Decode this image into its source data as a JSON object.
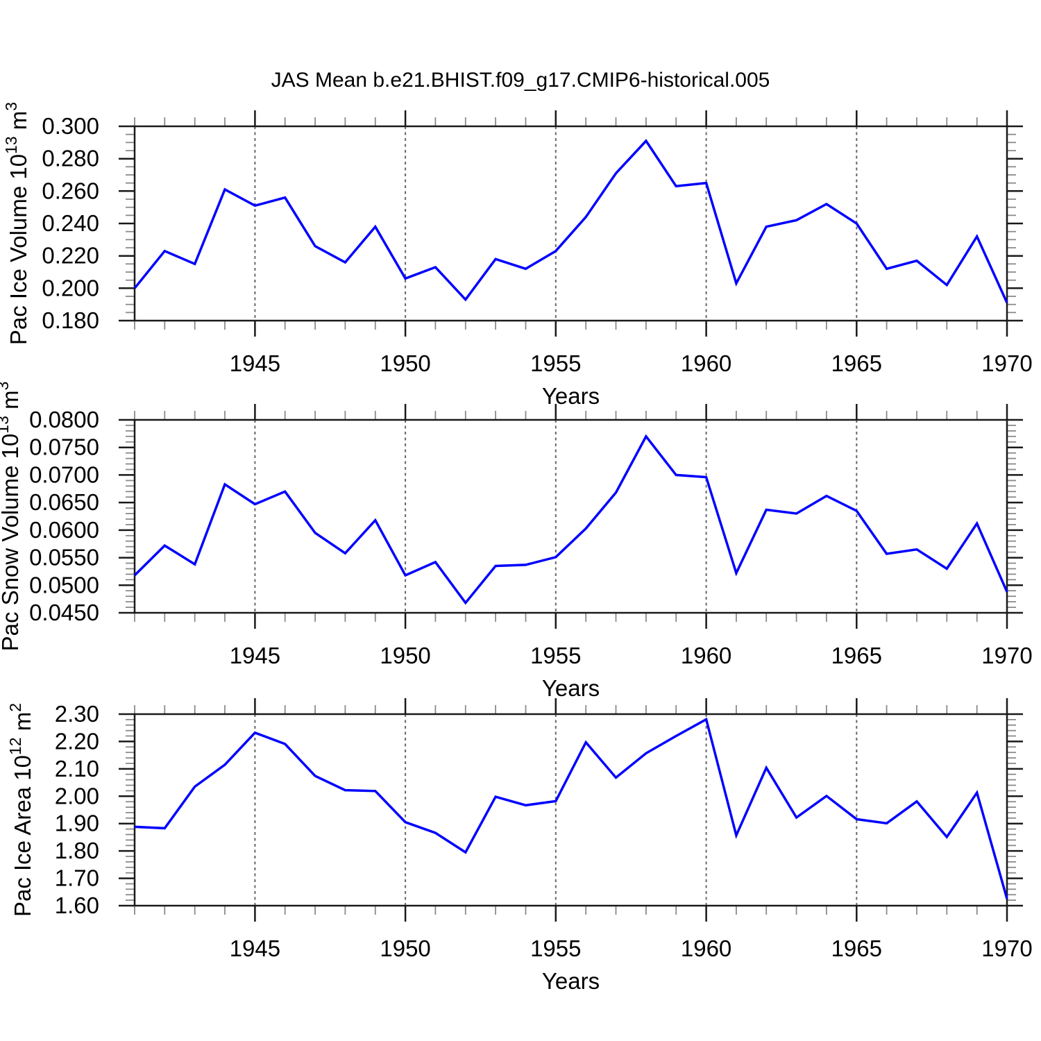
{
  "title": "JAS Mean b.e21.BHIST.f09_g17.CMIP6-historical.005",
  "colors": {
    "line": "#0000ff",
    "frame": "#1a1a1a",
    "major_tick": "#1a1a1a",
    "minor_tick": "#8a8a8a",
    "grid": "#666666",
    "text": "#000000",
    "background": "#ffffff"
  },
  "chart_data": [
    {
      "type": "line",
      "name": "pac-ice-volume",
      "ylabel": {
        "base": "Pac Ice Volume 10",
        "exp": "13",
        "unit": " m",
        "unit_exp": "3"
      },
      "xlabel": "Years",
      "xlim": [
        1941,
        1970
      ],
      "ylim": [
        0.18,
        0.3
      ],
      "ytick_labels": [
        "0.300",
        "0.280",
        "0.260",
        "0.240",
        "0.220",
        "0.200",
        "0.180"
      ],
      "ytick_values": [
        0.3,
        0.28,
        0.26,
        0.24,
        0.22,
        0.2,
        0.18
      ],
      "ytick_minor_step": 0.005,
      "xtick_labels": [
        "1945",
        "1950",
        "1955",
        "1960",
        "1965",
        "1970"
      ],
      "xtick_values": [
        1945,
        1950,
        1955,
        1960,
        1965,
        1970
      ],
      "xtick_minor_step": 1,
      "grid_x": [
        1945,
        1950,
        1955,
        1960,
        1965
      ],
      "grid_style": "vertical-dashed",
      "legend": "none",
      "x": [
        1941,
        1942,
        1943,
        1944,
        1945,
        1946,
        1947,
        1948,
        1949,
        1950,
        1951,
        1952,
        1953,
        1954,
        1955,
        1956,
        1957,
        1958,
        1959,
        1960,
        1961,
        1962,
        1963,
        1964,
        1965,
        1966,
        1967,
        1968,
        1969,
        1970
      ],
      "y": [
        0.2,
        0.223,
        0.215,
        0.261,
        0.251,
        0.256,
        0.226,
        0.216,
        0.238,
        0.206,
        0.213,
        0.193,
        0.218,
        0.212,
        0.223,
        0.244,
        0.271,
        0.291,
        0.263,
        0.265,
        0.203,
        0.238,
        0.242,
        0.252,
        0.24,
        0.212,
        0.217,
        0.202,
        0.232,
        0.191
      ]
    },
    {
      "type": "line",
      "name": "pac-snow-volume",
      "ylabel": {
        "base": "Pac Snow Volume 10",
        "exp": "13",
        "unit": " m",
        "unit_exp": "3"
      },
      "xlabel": "Years",
      "xlim": [
        1941,
        1970
      ],
      "ylim": [
        0.045,
        0.08
      ],
      "ytick_labels": [
        "0.0800",
        "0.0750",
        "0.0700",
        "0.0650",
        "0.0600",
        "0.0550",
        "0.0500",
        "0.0450"
      ],
      "ytick_values": [
        0.08,
        0.075,
        0.07,
        0.065,
        0.06,
        0.055,
        0.05,
        0.045
      ],
      "ytick_minor_step": 0.001,
      "xtick_labels": [
        "1945",
        "1950",
        "1955",
        "1960",
        "1965",
        "1970"
      ],
      "xtick_values": [
        1945,
        1950,
        1955,
        1960,
        1965,
        1970
      ],
      "xtick_minor_step": 1,
      "grid_x": [
        1945,
        1950,
        1955,
        1960,
        1965
      ],
      "grid_style": "vertical-dashed",
      "legend": "none",
      "x": [
        1941,
        1942,
        1943,
        1944,
        1945,
        1946,
        1947,
        1948,
        1949,
        1950,
        1951,
        1952,
        1953,
        1954,
        1955,
        1956,
        1957,
        1958,
        1959,
        1960,
        1961,
        1962,
        1963,
        1964,
        1965,
        1966,
        1967,
        1968,
        1969,
        1970
      ],
      "y": [
        0.0518,
        0.0572,
        0.0538,
        0.0683,
        0.0647,
        0.067,
        0.0595,
        0.0558,
        0.0618,
        0.0518,
        0.0542,
        0.0468,
        0.0535,
        0.0537,
        0.0551,
        0.0603,
        0.0668,
        0.077,
        0.07,
        0.0696,
        0.0522,
        0.0637,
        0.063,
        0.0662,
        0.0635,
        0.0557,
        0.0565,
        0.053,
        0.0612,
        0.0488
      ]
    },
    {
      "type": "line",
      "name": "pac-ice-area",
      "ylabel": {
        "base": "Pac Ice Area 10",
        "exp": "12",
        "unit": " m",
        "unit_exp": "2"
      },
      "xlabel": "Years",
      "xlim": [
        1941,
        1970
      ],
      "ylim": [
        1.6,
        2.3
      ],
      "ytick_labels": [
        "2.30",
        "2.20",
        "2.10",
        "2.00",
        "1.90",
        "1.80",
        "1.70",
        "1.60"
      ],
      "ytick_values": [
        2.3,
        2.2,
        2.1,
        2.0,
        1.9,
        1.8,
        1.7,
        1.6
      ],
      "ytick_minor_step": 0.02,
      "xtick_labels": [
        "1945",
        "1950",
        "1955",
        "1960",
        "1965",
        "1970"
      ],
      "xtick_values": [
        1945,
        1950,
        1955,
        1960,
        1965,
        1970
      ],
      "xtick_minor_step": 1,
      "grid_x": [
        1945,
        1950,
        1955,
        1960,
        1965
      ],
      "grid_style": "vertical-dashed",
      "legend": "none",
      "x": [
        1941,
        1942,
        1943,
        1944,
        1945,
        1946,
        1947,
        1948,
        1949,
        1950,
        1951,
        1952,
        1953,
        1954,
        1955,
        1956,
        1957,
        1958,
        1959,
        1960,
        1961,
        1962,
        1963,
        1964,
        1965,
        1966,
        1967,
        1968,
        1969,
        1970
      ],
      "y": [
        1.888,
        1.883,
        2.035,
        2.115,
        2.232,
        2.191,
        2.074,
        2.022,
        2.019,
        1.905,
        1.866,
        1.795,
        1.998,
        1.967,
        1.982,
        2.197,
        2.068,
        2.157,
        2.22,
        2.281,
        1.857,
        2.104,
        1.922,
        2.001,
        1.916,
        1.901,
        1.981,
        1.851,
        2.013,
        1.625
      ]
    }
  ]
}
